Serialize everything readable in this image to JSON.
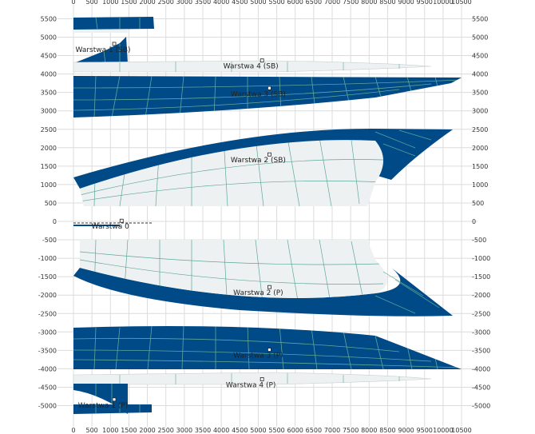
{
  "colors": {
    "hull": "#004a87",
    "mesh": "#5fa79a",
    "light_region": "#eef1f1",
    "grid": "#dcdcdc"
  },
  "chart_data": {
    "type": "diagram",
    "xlim": [
      0,
      10500
    ],
    "ylim": [
      -5500,
      5800
    ],
    "x_ticks": [
      0,
      500,
      1000,
      1500,
      2000,
      2500,
      3000,
      3500,
      4000,
      4500,
      5000,
      5500,
      6000,
      6500,
      7000,
      7500,
      8000,
      8500,
      9000,
      9500,
      10000,
      10500
    ],
    "y_ticks": [
      5500,
      5000,
      4500,
      4000,
      3500,
      3000,
      2500,
      2000,
      1500,
      1000,
      500,
      0,
      -500,
      -1000,
      -1500,
      -2000,
      -2500,
      -3000,
      -3500,
      -4000,
      -4500,
      -5000
    ],
    "labels": [
      {
        "id": "w1sb",
        "text": "Warstwa 1 (SB)",
        "x": 800,
        "y": 4600
      },
      {
        "id": "w4sb",
        "text": "Warstwa 4 (SB)",
        "x": 4800,
        "y": 4150
      },
      {
        "id": "w3sb",
        "text": "Warstwa 3 (SB)",
        "x": 5000,
        "y": 3400
      },
      {
        "id": "w2sb",
        "text": "Warstwa 2 (SB)",
        "x": 5000,
        "y": 1600
      },
      {
        "id": "w0",
        "text": "Warstwa 0",
        "x": 1000,
        "y": -200
      },
      {
        "id": "w2p",
        "text": "Warstwa 2 (P)",
        "x": 5000,
        "y": -2000
      },
      {
        "id": "w3p",
        "text": "Warstwa 3 (P)",
        "x": 5000,
        "y": -3700
      },
      {
        "id": "w4p",
        "text": "Warstwa 4 (P)",
        "x": 4800,
        "y": -4500
      },
      {
        "id": "w1p",
        "text": "Warstwa 1 (P)",
        "x": 800,
        "y": -5050
      }
    ]
  }
}
